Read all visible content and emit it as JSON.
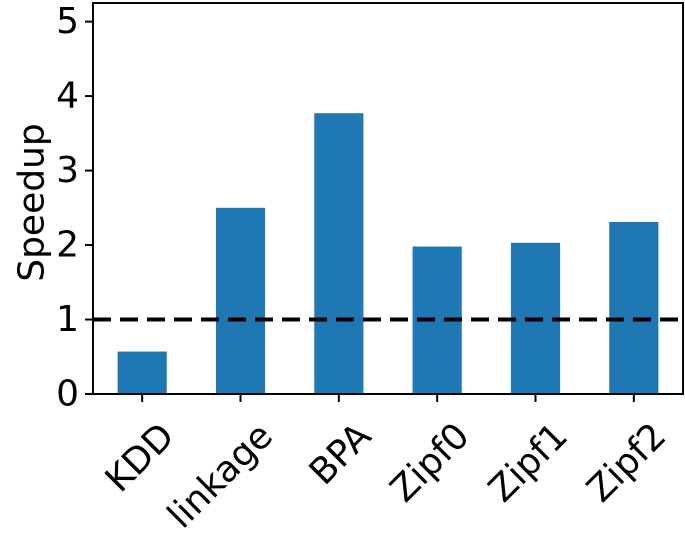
{
  "chart_data": {
    "type": "bar",
    "title": "",
    "xlabel": "",
    "ylabel": "Speedup",
    "categories": [
      "KDD",
      "linkage",
      "BPA",
      "Zipf0",
      "Zipf1",
      "Zipf2"
    ],
    "values": [
      0.57,
      2.5,
      3.77,
      1.98,
      2.03,
      2.31
    ],
    "ylim": [
      0,
      5.25
    ],
    "yticks": [
      "0",
      "1",
      "2",
      "3",
      "4",
      "5"
    ],
    "reference_line": {
      "y": 1,
      "style": "dashed",
      "color": "#000000"
    },
    "bar_color": "#1f77b4",
    "grid": false,
    "legend": "none"
  }
}
